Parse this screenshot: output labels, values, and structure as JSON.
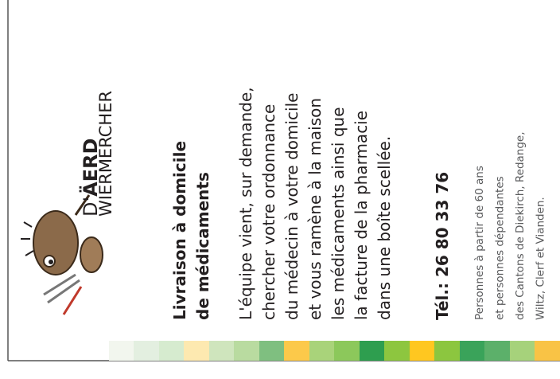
{
  "logo": {
    "prefix": "D'",
    "name": "ÄERD",
    "subtitle": "WIERMERCHER"
  },
  "heading": [
    "Livraison à domicile",
    "de médicaments"
  ],
  "body": [
    "L'équipe vient, sur demande,",
    "chercher votre ordonnance",
    "du médecin à votre domicile",
    "et vous ramène à la maison",
    "les médicaments ainsi que",
    "la facture de la pharmacie",
    "dans une boîte scellée."
  ],
  "phone": "Tél.: 26 80 33 76",
  "note": [
    "Personnes à partir de 60 ans",
    "et personnes dépendantes",
    "des Cantons de Diekirch, Redange,",
    "Wiltz, Clerf et Vianden."
  ]
}
